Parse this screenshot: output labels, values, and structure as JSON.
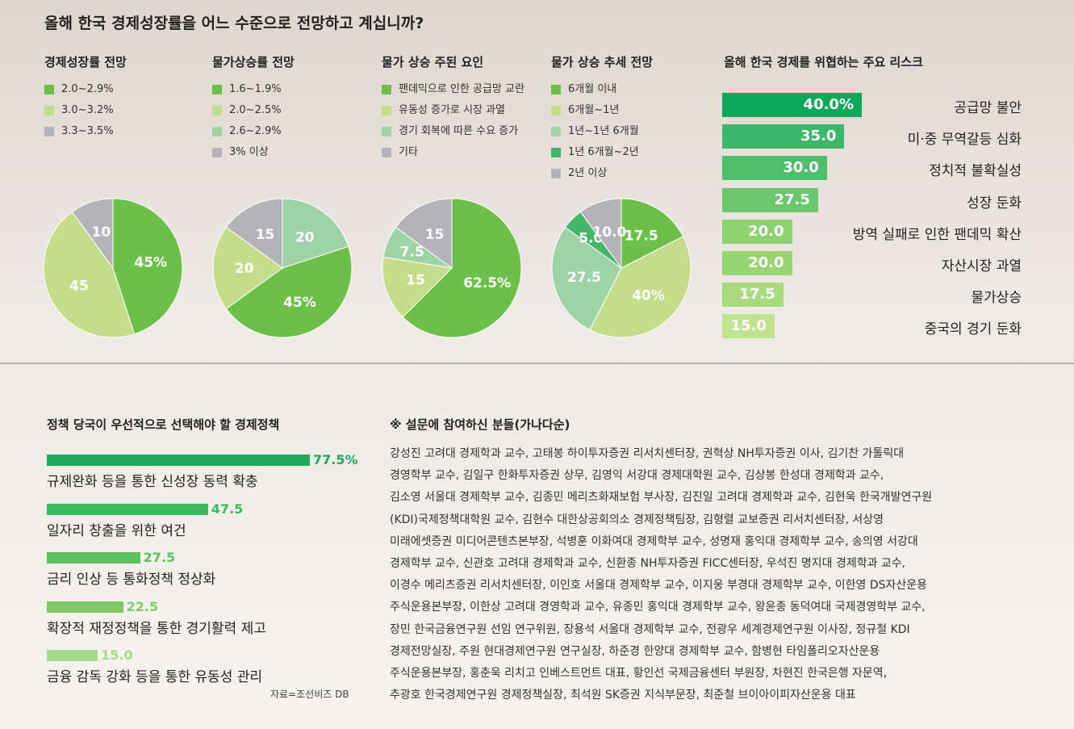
{
  "title": "올해 한국 경제성장률을 어느 수준으로 전망하고 계십니까?",
  "colors": {
    "dark_green": "#4caf3a",
    "green": "#6cc04a",
    "light_green": "#c3dd8c",
    "pale_green": "#dcebb6",
    "mint": "#9ed3a6",
    "gray": "#b4b4b8",
    "deep_green": "#46b56a"
  },
  "chart_data": [
    {
      "type": "pie",
      "title": "경제성장률 전망",
      "legend": [
        "2.0~2.9%",
        "3.0~3.2%",
        "3.3~3.5%"
      ],
      "values": [
        45,
        45,
        10
      ],
      "data_labels": [
        "45%",
        "45",
        "10"
      ],
      "colors": [
        "#6cc04a",
        "#c3dd8c",
        "#b4b4b8"
      ]
    },
    {
      "type": "pie",
      "title": "물가상승률 전망",
      "legend": [
        "1.6~1.9%",
        "2.0~2.5%",
        "2.6~2.9%",
        "3% 이상"
      ],
      "values": [
        45,
        20,
        20,
        15
      ],
      "order": [
        2,
        0,
        1,
        3
      ],
      "data_labels": [
        "45%",
        "20",
        "20",
        "15"
      ],
      "colors": [
        "#6cc04a",
        "#c3dd8c",
        "#9ed3a6",
        "#b4b4b8"
      ]
    },
    {
      "type": "pie",
      "title": "물가 상승 주된 요인",
      "legend": [
        "팬데믹으로 인한 공급망 교란",
        "유동성 증가로 시장 과열",
        "경기 회복에 따른 수요 증가",
        "기타"
      ],
      "values": [
        62.5,
        15,
        7.5,
        15
      ],
      "data_labels": [
        "62.5%",
        "15",
        "7.5",
        "15"
      ],
      "colors": [
        "#6cc04a",
        "#c3dd8c",
        "#9ed3a6",
        "#b4b4b8"
      ]
    },
    {
      "type": "pie",
      "title": "물가 상승 추세 전망",
      "legend": [
        "6개월 이내",
        "6개월~1년",
        "1년~1년 6개월",
        "1년 6개월~2년",
        "2년 이상"
      ],
      "values": [
        17.5,
        40,
        27.5,
        5,
        10
      ],
      "data_labels": [
        "17.5",
        "40%",
        "27.5",
        "5.0",
        "10.0"
      ],
      "colors": [
        "#6cc04a",
        "#c3dd8c",
        "#9ed3a6",
        "#46b56a",
        "#b4b4b8"
      ]
    },
    {
      "type": "bar",
      "title": "올해 한국 경제를 위협하는 주요 리스크",
      "categories": [
        "공급망 불안",
        "미·중 무역갈등 심화",
        "정치적 불확실성",
        "성장 둔화",
        "방역 실패로 인한 팬데믹 확산",
        "자산시장 과열",
        "물가상승",
        "중국의 경기 둔화"
      ],
      "values": [
        40.0,
        35.0,
        30.0,
        27.5,
        20.0,
        20.0,
        17.5,
        15.0
      ],
      "data_labels": [
        "40.0%",
        "35.0",
        "30.0",
        "27.5",
        "20.0",
        "20.0",
        "17.5",
        "15.0"
      ],
      "colors": [
        "#0fa85a",
        "#3db76a",
        "#4fbd6c",
        "#6cc66e",
        "#8ed16f",
        "#99d472",
        "#a9da7b",
        "#bfe38e"
      ]
    },
    {
      "type": "bar",
      "title": "정책 당국이 우선적으로 선택해야 할 경제정책",
      "categories": [
        "규제완화 등을 통한 신성장 동력 확충",
        "일자리 창출을 위한 여건",
        "금리 인상 등 통화정책 정상화",
        "확장적 재정정책을 통한 경기활력 제고",
        "금융 감독 강화 등을 통한 유동성 관리"
      ],
      "values": [
        77.5,
        47.5,
        27.5,
        22.5,
        15.0
      ],
      "data_labels": [
        "77.5%",
        "47.5",
        "27.5",
        "22.5",
        "15.0"
      ],
      "colors": [
        "#1ea95a",
        "#3db85c",
        "#5cc05e",
        "#80c966",
        "#a6d98a"
      ],
      "source": "자료=조선비즈 DB"
    }
  ],
  "participants": {
    "title": "※ 설문에 참여하신 분들(가나다순)",
    "lines": [
      "강성진 고려대 경제학과 교수, 고태봉 하이투자증권 리서치센터장, 권혁상 NH투자증권 이사, 김기찬 가톨릭대",
      "경영학부 교수, 김일구 한화투자증권 상무, 김영익 서강대 경제대학원 교수, 김상봉 한성대 경제학과 교수,",
      "김소영 서울대 경제학부 교수, 김종민 메리츠화재보험 부사장, 김진일 고려대 경제학과 교수, 김현욱 한국개발연구원",
      "(KDI)국제정책대학원 교수, 김현수 대한상공회의소 경제정책팀장, 김형렬 교보증권 리서치센터장, 서상영",
      "미래에셋증권 미디어콘텐츠본부장, 석병훈 이화여대 경제학부 교수, 성명재 홍익대 경제학부 교수, 송의영 서강대",
      "경제학부 교수, 신관호 고려대 경제학과 교수, 신환종 NH투자증권 FICC센터장, 우석진 명지대 경제학과 교수,",
      "이경수 메리츠증권 리서치센터장, 이인호 서울대 경제학부 교수, 이지웅 부경대 경제학부 교수, 이한영 DS자산운용",
      "주식운용본부장, 이한상 고려대 경영학과 교수, 유종민 홍익대 경제학부 교수, 왕윤종 동덕여대 국제경영학부 교수,",
      "장민 한국금융연구원 선임 연구위원, 장용석 서울대 경제학부 교수, 전광우 세계경제연구원 이사장, 정규철 KDI",
      "경제전망실장, 주원 현대경제연구원 연구실장, 하준경 한양대 경제학부 교수, 함병현 타임폴리오자산운용",
      "주식운용본부장, 홍춘욱 리치고 인베스트먼트 대표, 황인선 국제금융센터 부원장, 차현진 한국은행 자문역,",
      "추광호 한국경제연구원 경제정책실장, 최석원 SK증권 지식부문장, 최준철 브이아이피자산운용 대표"
    ]
  }
}
